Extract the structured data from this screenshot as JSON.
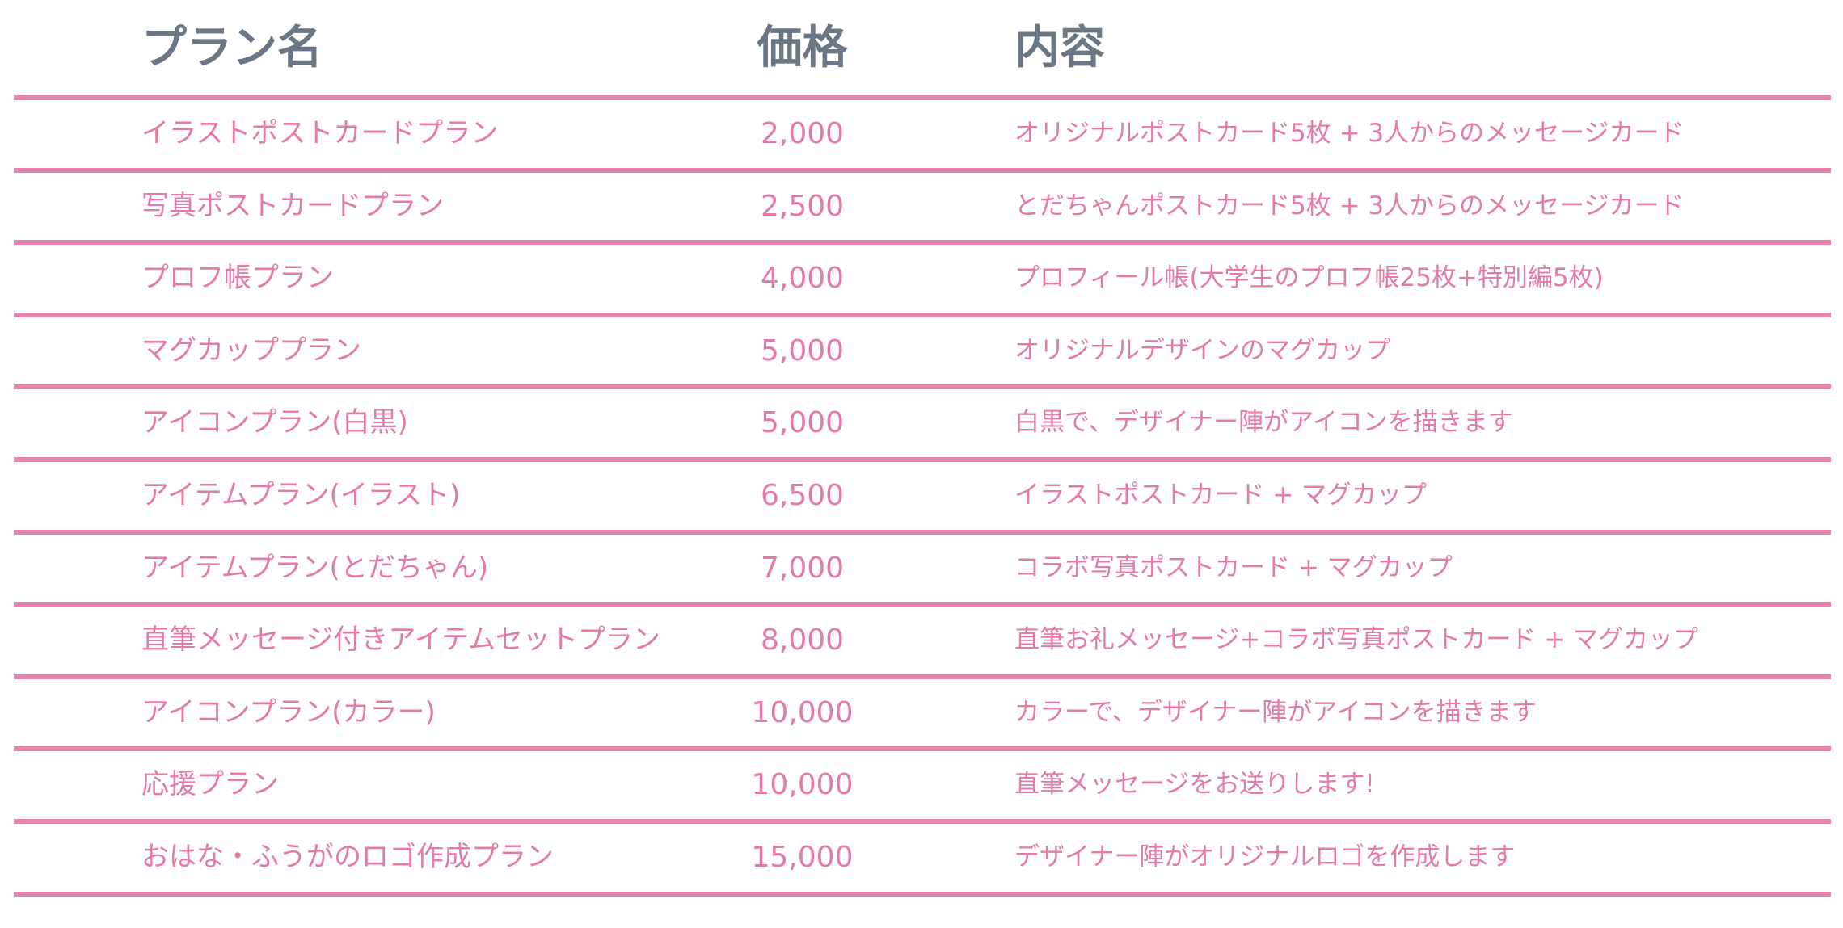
{
  "headers": {
    "name": "プラン名",
    "price": "価格",
    "content": "内容"
  },
  "colors": {
    "header_text": "#6b7784",
    "row_text": "#e47aa7",
    "rule": "#e982ad"
  },
  "rows": [
    {
      "name": "イラストポストカードプラン",
      "price": "2,000",
      "content": "オリジナルポストカード5枚 + 3人からのメッセージカード"
    },
    {
      "name": "写真ポストカードプラン",
      "price": "2,500",
      "content": "とだちゃんポストカード5枚 + 3人からのメッセージカード"
    },
    {
      "name": "プロフ帳プラン",
      "price": "4,000",
      "content": "プロフィール帳(大学生のプロフ帳25枚+特別編5枚)"
    },
    {
      "name": "マグカッププラン",
      "price": "5,000",
      "content": "オリジナルデザインのマグカップ"
    },
    {
      "name": "アイコンプラン(白黒)",
      "price": "5,000",
      "content": "白黒で、デザイナー陣がアイコンを描きます"
    },
    {
      "name": "アイテムプラン(イラスト)",
      "price": "6,500",
      "content": "イラストポストカード + マグカップ"
    },
    {
      "name": "アイテムプラン(とだちゃん)",
      "price": "7,000",
      "content": "コラボ写真ポストカード + マグカップ"
    },
    {
      "name": "直筆メッセージ付きアイテムセットプラン",
      "price": "8,000",
      "content": "直筆お礼メッセージ+コラボ写真ポストカード + マグカップ"
    },
    {
      "name": "アイコンプラン(カラー)",
      "price": "10,000",
      "content": "カラーで、デザイナー陣がアイコンを描きます"
    },
    {
      "name": "応援プラン",
      "price": "10,000",
      "content": "直筆メッセージをお送りします!"
    },
    {
      "name": "おはな・ふうがのロゴ作成プラン",
      "price": "15,000",
      "content": "デザイナー陣がオリジナルロゴを作成します"
    }
  ]
}
